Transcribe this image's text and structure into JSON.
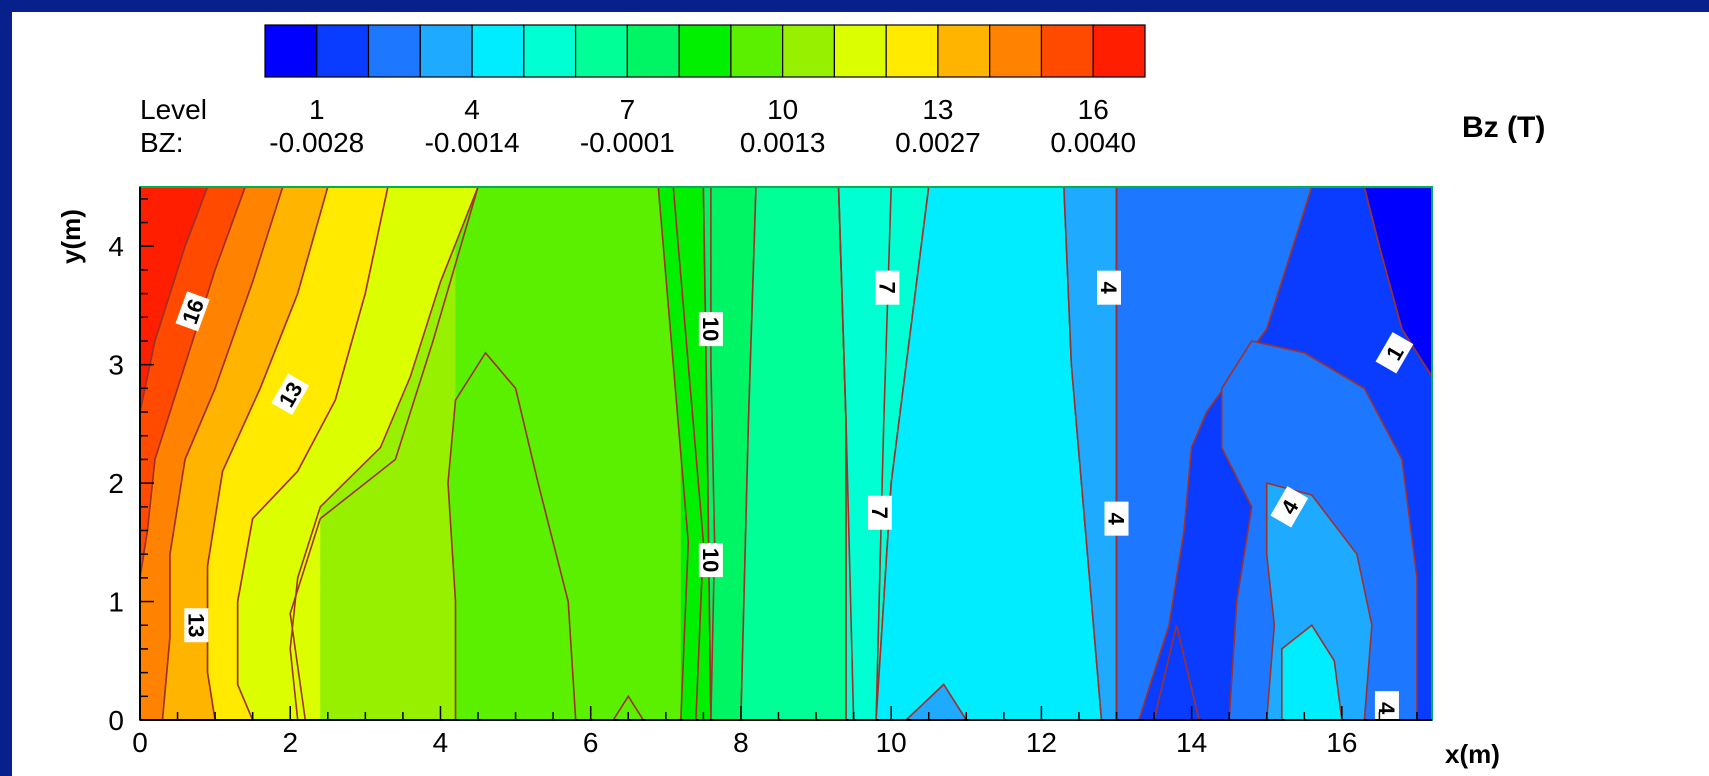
{
  "chart_data": {
    "type": "heatmap",
    "title": "Bz (T)",
    "xlabel": "x(m)",
    "ylabel": "y(m)",
    "xlim": [
      0,
      17.2
    ],
    "ylim": [
      0,
      4.5
    ],
    "x_ticks": [
      0,
      2,
      4,
      6,
      8,
      10,
      12,
      14,
      16
    ],
    "y_ticks": [
      0,
      1,
      2,
      3,
      4
    ],
    "legend": {
      "level_label": "Level",
      "value_label": "BZ:",
      "levels": [
        "1",
        "4",
        "7",
        "10",
        "13",
        "16"
      ],
      "values": [
        "-0.0028",
        "-0.0014",
        "-0.0001",
        "0.0013",
        "0.0027",
        "0.0040"
      ],
      "colors": [
        "#0000ff",
        "#0a3cff",
        "#1e78ff",
        "#1eaaff",
        "#00ecff",
        "#00ffd2",
        "#00ff96",
        "#00f564",
        "#00f000",
        "#5af000",
        "#96f000",
        "#dcff00",
        "#ffea00",
        "#ffb400",
        "#ff8200",
        "#ff4a00",
        "#ff1e00"
      ]
    },
    "contour_labels": [
      "16",
      "13",
      "13",
      "10",
      "10",
      "7",
      "7",
      "4",
      "4",
      "4",
      "1",
      "4"
    ],
    "vertical_bands": [
      {
        "level": 17,
        "x": [
          0,
          0.5
        ]
      },
      {
        "level": 16,
        "x": [
          0.2,
          0.9
        ]
      },
      {
        "level": 15,
        "x": [
          0.5,
          1.2
        ]
      },
      {
        "level": 14,
        "x": [
          0.7,
          1.6
        ]
      },
      {
        "level": 13,
        "x": [
          1.0,
          2.4
        ]
      },
      {
        "level": 12,
        "x": [
          1.6,
          3.4
        ]
      },
      {
        "level": 11,
        "x": [
          2.4,
          7.2
        ]
      },
      {
        "level": 10,
        "x": [
          4.2,
          7.5
        ]
      },
      {
        "level": 9,
        "x": [
          7.2,
          8.0
        ]
      },
      {
        "level": 8,
        "x": [
          7.6,
          9.3
        ]
      },
      {
        "level": 7,
        "x": [
          9.0,
          10.5
        ]
      },
      {
        "level": 6,
        "x": [
          10.0,
          12.6
        ]
      },
      {
        "level": 5,
        "x": [
          12.3,
          13.0
        ]
      },
      {
        "level": 4,
        "x": [
          13.0,
          16.0
        ]
      },
      {
        "level": 3,
        "x": [
          14.5,
          17.2
        ]
      },
      {
        "level": 2,
        "x": [
          16.0,
          17.2
        ]
      }
    ]
  }
}
